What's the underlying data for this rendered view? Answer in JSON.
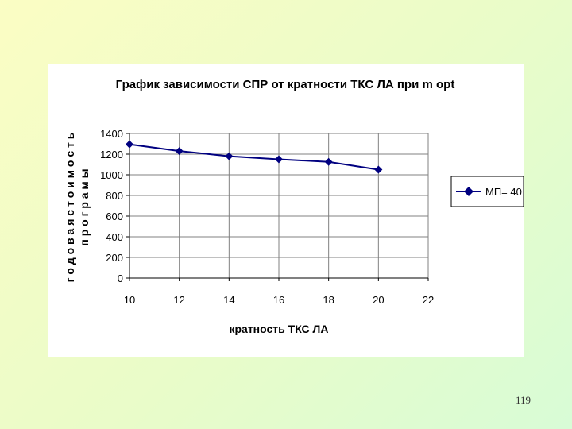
{
  "page": {
    "number": "119"
  },
  "chart_data": {
    "type": "line",
    "title": "График зависимости СПР от кратности ТКС ЛА при m opt",
    "xlabel": "кратность ТКС ЛА",
    "ylabel_lines": [
      "г о д о в а я  с т о и м о с т ь",
      "п р о г р а м ы"
    ],
    "xlim": [
      10,
      22
    ],
    "ylim": [
      0,
      1400
    ],
    "xticks": [
      10,
      12,
      14,
      16,
      18,
      20,
      22
    ],
    "yticks": [
      0,
      200,
      400,
      600,
      800,
      1000,
      1200,
      1400
    ],
    "grid": true,
    "legend_position": "right",
    "series": [
      {
        "name": "МП= 40",
        "color": "#000080",
        "marker": "diamond",
        "x": [
          10,
          12,
          14,
          16,
          18,
          20
        ],
        "y": [
          1295,
          1230,
          1180,
          1150,
          1125,
          1050
        ]
      }
    ]
  }
}
